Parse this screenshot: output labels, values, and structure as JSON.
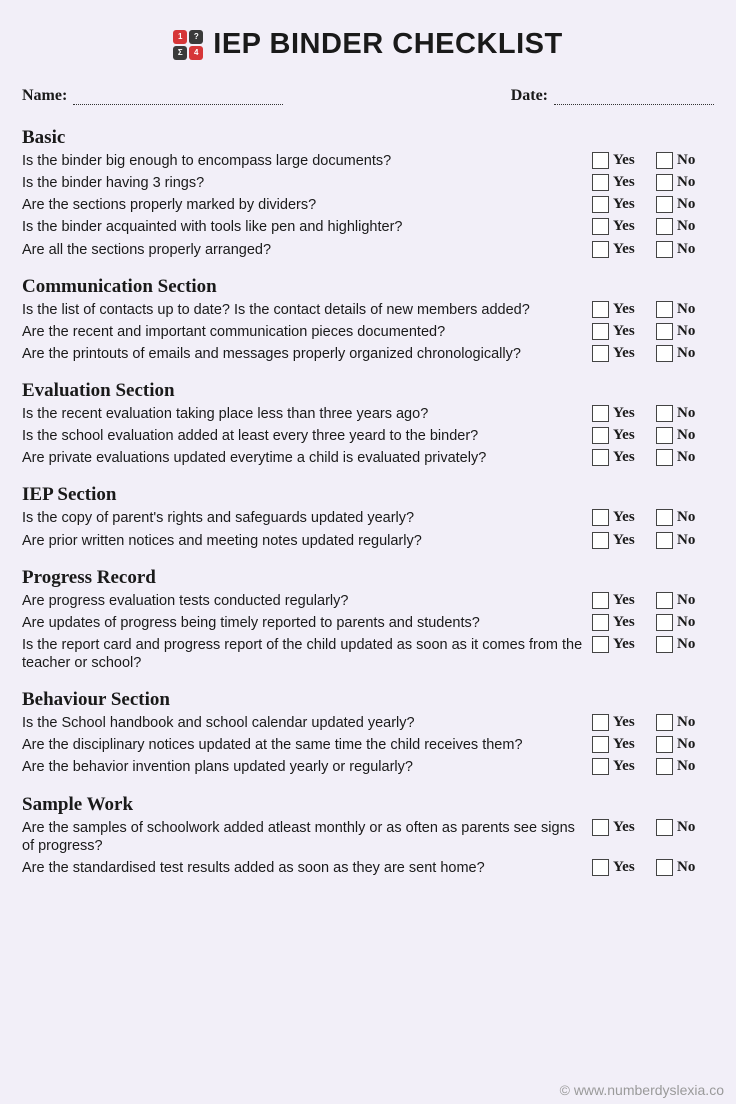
{
  "title": "IEP BINDER CHECKLIST",
  "logo": {
    "squares": [
      {
        "bg": "#d63638",
        "ch": "1"
      },
      {
        "bg": "#3a3a3a",
        "ch": "?"
      },
      {
        "bg": "#3a3a3a",
        "ch": "Σ"
      },
      {
        "bg": "#d63638",
        "ch": "4"
      }
    ]
  },
  "meta": {
    "name_label": "Name:",
    "date_label": "Date:",
    "name_line_width": 210,
    "date_line_width": 160
  },
  "yes_label": "Yes",
  "no_label": "No",
  "sections": [
    {
      "title": "Basic",
      "questions": [
        "Is the binder big enough to encompass large documents?",
        "Is the binder having 3 rings?",
        "Are the sections properly marked by dividers?",
        "Is the binder acquainted with tools like pen and highlighter?",
        "Are all the sections properly arranged?"
      ]
    },
    {
      "title": "Communication Section",
      "questions": [
        "Is the list of contacts up to date? Is the contact details of new members added?",
        "Are the recent and important communication pieces documented?",
        "Are the printouts of emails and messages properly organized chronologically?"
      ]
    },
    {
      "title": "Evaluation Section",
      "questions": [
        "Is the recent evaluation taking place less than three years ago?",
        "Is the school evaluation added at least every three yeard to the binder?",
        "Are private evaluations updated everytime a child is evaluated privately?"
      ]
    },
    {
      "title": "IEP Section",
      "questions": [
        "Is the copy of parent's rights and safeguards updated yearly?",
        "Are prior written notices and meeting notes updated regularly?"
      ]
    },
    {
      "title": "Progress Record",
      "questions": [
        "Are progress evaluation tests conducted regularly?",
        "Are updates of progress being timely reported to parents and students?",
        "Is the report card and progress report of the child updated as soon as it comes from the teacher or school?"
      ]
    },
    {
      "title": "Behaviour Section",
      "questions": [
        "Is the School handbook and school calendar updated yearly?",
        "Are the disciplinary notices updated at the same time the child receives them?",
        "Are the behavior invention plans updated yearly or regularly?"
      ]
    },
    {
      "title": "Sample Work",
      "questions": [
        "Are the samples of schoolwork added atleast monthly or as often as parents see signs of progress?",
        "Are the standardised test results added as soon as they are sent home?"
      ]
    }
  ],
  "footer": "© www.numberdyslexia.co"
}
